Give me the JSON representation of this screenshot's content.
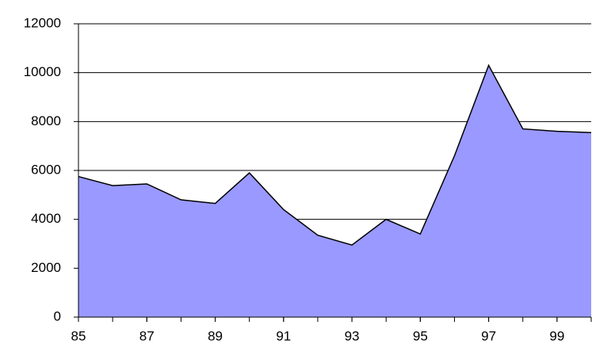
{
  "chart_data": {
    "type": "area",
    "x": [
      85,
      86,
      87,
      88,
      89,
      90,
      91,
      92,
      93,
      94,
      95,
      96,
      97,
      98,
      99,
      100
    ],
    "series": [
      {
        "color": "#9999ff",
        "values": [
          5750,
          5380,
          5450,
          4800,
          4650,
          5900,
          4400,
          3350,
          2950,
          4000,
          3400,
          6600,
          10300,
          7700,
          7600,
          7550
        ]
      }
    ],
    "xlim": [
      85,
      100
    ],
    "xticks": [
      85,
      87,
      89,
      91,
      93,
      95,
      97,
      99
    ],
    "ylim": [
      0,
      12000
    ],
    "yticks": [
      0,
      2000,
      4000,
      6000,
      8000,
      10000,
      12000
    ],
    "grid": true
  }
}
